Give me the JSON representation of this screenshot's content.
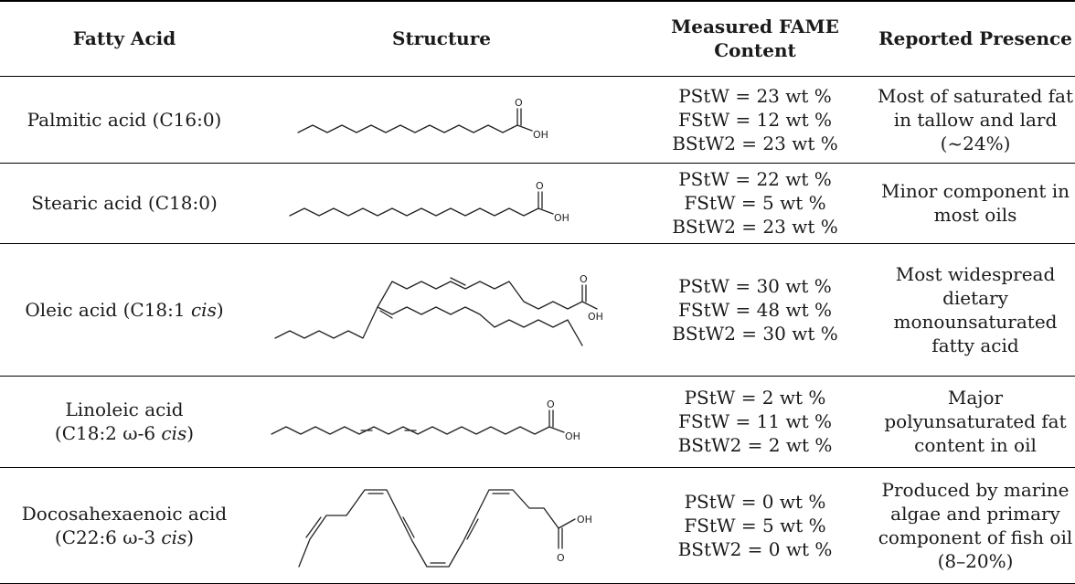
{
  "table": {
    "headers": {
      "fatty_acid": "Fatty Acid",
      "structure": "Structure",
      "fame_line1": "Measured FAME",
      "fame_line2": "Content",
      "presence": "Reported Presence"
    },
    "rows": [
      {
        "name_line1": "Palmitic acid (C16:0)",
        "name_line2": "",
        "content": [
          "PStW = 23 wt %",
          "FStW = 12 wt %",
          "BStW2 = 23 wt %"
        ],
        "presence": [
          "Most of saturated fat",
          "in tallow and lard",
          "(~24%)"
        ],
        "atoms": {
          "o": "O",
          "oh": "OH"
        }
      },
      {
        "name_line1": "Stearic acid (C18:0)",
        "name_line2": "",
        "content": [
          "PStW = 22 wt %",
          "FStW = 5 wt %",
          "BStW2 = 23 wt %"
        ],
        "presence": [
          "Minor component in",
          "most oils"
        ],
        "atoms": {
          "o": "O",
          "oh": "OH"
        }
      },
      {
        "name_prefix": "Oleic acid (C18:1 ",
        "name_italic": "cis",
        "name_suffix": ")",
        "content": [
          "PStW = 30 wt %",
          "FStW = 48 wt %",
          "BStW2 = 30 wt %"
        ],
        "presence": [
          "Most widespread",
          "dietary",
          "monounsaturated",
          "fatty acid"
        ],
        "atoms": {
          "o": "O",
          "oh": "OH"
        }
      },
      {
        "name_line1": "Linoleic acid",
        "name_prefix": "(C18:2 ω-6 ",
        "name_italic": "cis",
        "name_suffix": ")",
        "content": [
          "PStW = 2 wt %",
          "FStW = 11 wt %",
          "BStW2 = 2 wt %"
        ],
        "presence": [
          "Major",
          "polyunsaturated fat",
          "content in oil"
        ],
        "atoms": {
          "o": "O",
          "oh": "OH"
        }
      },
      {
        "name_line1": "Docosahexaenoic acid",
        "name_prefix": "(C22:6 ω-3 ",
        "name_italic": "cis",
        "name_suffix": ")",
        "content": [
          "PStW = 0 wt %",
          "FStW = 5 wt %",
          "BStW2 = 0 wt %"
        ],
        "presence": [
          "Produced by marine",
          "algae and primary",
          "component of fish oil",
          "(8–20%)"
        ],
        "atoms": {
          "o": "O",
          "oh": "OH"
        }
      }
    ]
  }
}
